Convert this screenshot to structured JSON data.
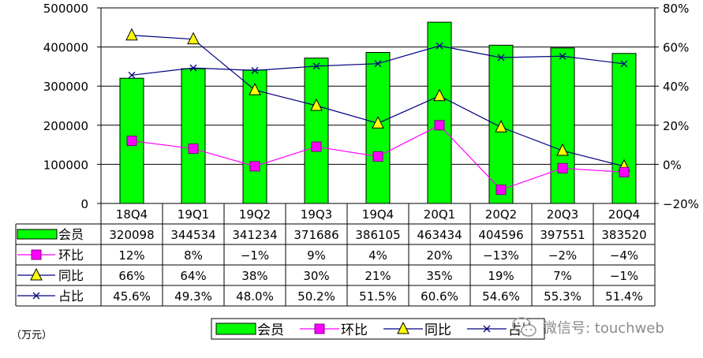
{
  "chart_data": {
    "type": "bar",
    "categories": [
      "18Q4",
      "19Q1",
      "19Q2",
      "19Q3",
      "19Q4",
      "20Q1",
      "20Q2",
      "20Q3",
      "20Q4"
    ],
    "series": [
      {
        "name": "会员",
        "kind": "bar",
        "axis": "left",
        "values": [
          320098,
          344534,
          341234,
          371686,
          386105,
          463434,
          404596,
          397551,
          383520
        ],
        "color": "#00ff00",
        "display": [
          "320098",
          "344534",
          "341234",
          "371686",
          "386105",
          "463434",
          "404596",
          "397551",
          "383520"
        ]
      },
      {
        "name": "环比",
        "kind": "line",
        "axis": "right",
        "marker": "square",
        "values": [
          12,
          8,
          -1,
          9,
          4,
          20,
          -13,
          -2,
          -4
        ],
        "color": "#ff00ff",
        "display": [
          "12%",
          "8%",
          "−1%",
          "9%",
          "4%",
          "20%",
          "−13%",
          "−2%",
          "−4%"
        ]
      },
      {
        "name": "同比",
        "kind": "line",
        "axis": "right",
        "marker": "triangle",
        "values": [
          66,
          64,
          38,
          30,
          21,
          35,
          19,
          7,
          -1
        ],
        "color": "#ffff00",
        "display": [
          "66%",
          "64%",
          "38%",
          "30%",
          "21%",
          "35%",
          "19%",
          "7%",
          "−1%"
        ]
      },
      {
        "name": "占比",
        "kind": "line",
        "axis": "right",
        "marker": "x",
        "values": [
          45.6,
          49.3,
          48.0,
          50.2,
          51.5,
          60.6,
          54.6,
          55.3,
          51.4
        ],
        "color": "#000080",
        "display": [
          "45.6%",
          "49.3%",
          "48.0%",
          "50.2%",
          "51.5%",
          "60.6%",
          "54.6%",
          "55.3%",
          "51.4%"
        ]
      }
    ],
    "ylim_left": [
      0,
      500000
    ],
    "yticks_left": [
      "0",
      "100000",
      "200000",
      "300000",
      "400000",
      "500000"
    ],
    "ylim_right": [
      -20,
      80
    ],
    "yticks_right": [
      "−20%",
      "0%",
      "20%",
      "40%",
      "60%",
      "80%"
    ],
    "grid": true,
    "legend_position": "bottom-center",
    "data_table": true,
    "unit_label": "（万元）"
  },
  "watermark": {
    "text": "微信号: touchweb",
    "icon": "wechat-icon"
  }
}
